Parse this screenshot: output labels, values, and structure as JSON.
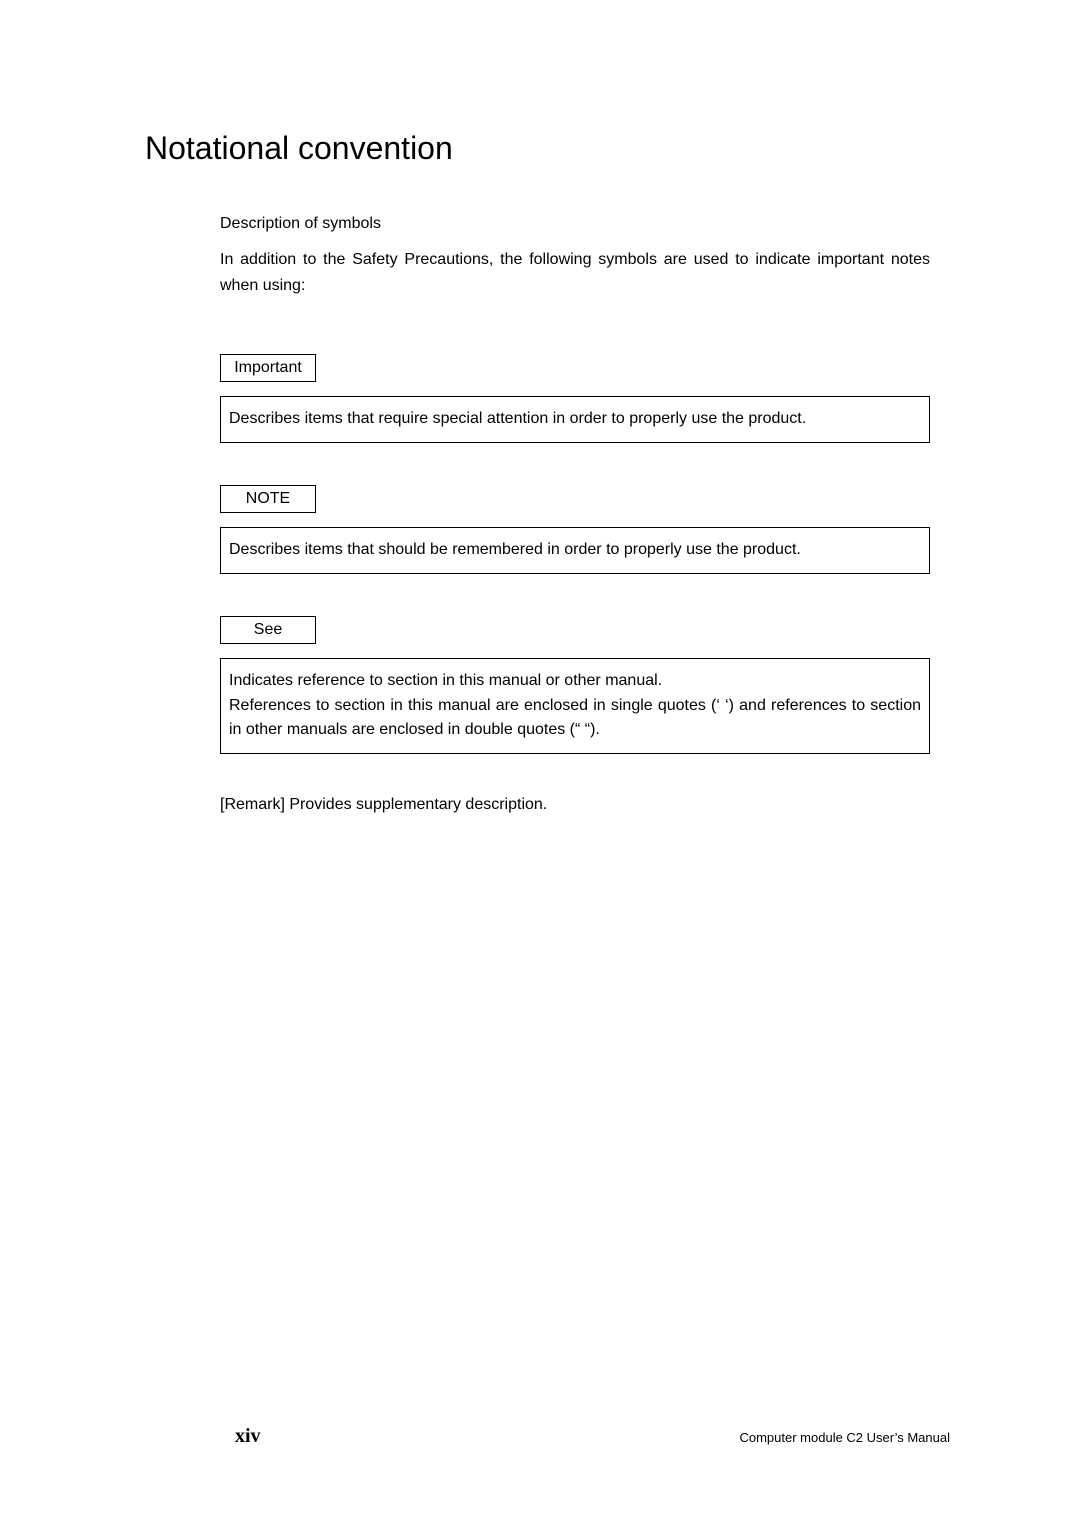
{
  "title": "Notational convention",
  "subhead": "Description of symbols",
  "intro_para": "In addition to the Safety Precautions, the following symbols are used to indicate important notes when using:",
  "symbols": {
    "important": {
      "label": "Important",
      "body": "Describes items that require special attention in order to properly use the product."
    },
    "note": {
      "label": "NOTE",
      "body": "Describes items that should be remembered in order to properly use the product."
    },
    "see": {
      "label": "See",
      "body": "Indicates reference to section in this manual or other manual.\nReferences to section in this manual are enclosed in single quotes (‘ ‘) and references to section in other manuals are enclosed in double quotes (“ “)."
    }
  },
  "remark": "[Remark] Provides supplementary description.",
  "footer": {
    "page_number": "xiv",
    "doc_title": "Computer module C2 User’s Manual"
  },
  "colors": {
    "background": "#ffffff",
    "text": "#000000",
    "border": "#000000"
  }
}
